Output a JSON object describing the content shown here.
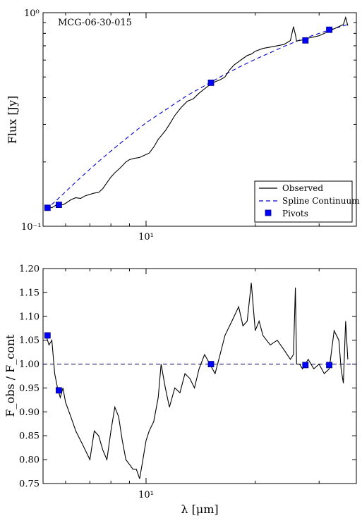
{
  "chart_data": [
    {
      "type": "line",
      "panel": "top",
      "annotation": "MCG-06-30-015",
      "xlabel": "",
      "ylabel": "Flux [Jy]",
      "xscale": "log",
      "yscale": "log",
      "xlim": [
        5.2,
        38
      ],
      "ylim": [
        0.1,
        1.0
      ],
      "x_tick_labels": [
        {
          "value": 10,
          "label": "10¹"
        }
      ],
      "y_tick_labels": [
        {
          "value": 0.1,
          "label": "10⁻¹"
        },
        {
          "value": 1.0,
          "label": "10⁰"
        }
      ],
      "legend": {
        "placement": "bottom-right",
        "entries": [
          {
            "label": "Observed",
            "style": "solid-line"
          },
          {
            "label": "Spline Continuum",
            "style": "dashed-line"
          },
          {
            "label": "Pivots",
            "style": "square-marker"
          }
        ]
      },
      "series": [
        {
          "role": "observed",
          "x": [
            5.3,
            5.5,
            5.7,
            5.9,
            6.0,
            6.2,
            6.4,
            6.6,
            6.8,
            7.0,
            7.2,
            7.4,
            7.6,
            7.8,
            8.0,
            8.2,
            8.5,
            8.8,
            9.0,
            9.3,
            9.6,
            9.9,
            10.2,
            10.5,
            10.8,
            11.1,
            11.3,
            11.6,
            12.0,
            12.5,
            13.0,
            13.5,
            14.0,
            14.5,
            15.0,
            15.5,
            16.0,
            16.5,
            17.0,
            17.5,
            18.0,
            18.5,
            19.0,
            19.5,
            20.0,
            21.0,
            22.0,
            23.0,
            24.0,
            25.0,
            25.5,
            25.8,
            26.0,
            26.3,
            27.0,
            28.0,
            29.0,
            30.0,
            31.0,
            32.0,
            33.0,
            34.0,
            35.0,
            35.5,
            36.0
          ],
          "y": [
            0.125,
            0.122,
            0.127,
            0.126,
            0.128,
            0.133,
            0.136,
            0.135,
            0.139,
            0.141,
            0.143,
            0.144,
            0.15,
            0.16,
            0.17,
            0.178,
            0.188,
            0.2,
            0.205,
            0.208,
            0.21,
            0.215,
            0.22,
            0.235,
            0.255,
            0.27,
            0.28,
            0.3,
            0.33,
            0.36,
            0.385,
            0.395,
            0.42,
            0.44,
            0.46,
            0.475,
            0.485,
            0.5,
            0.54,
            0.57,
            0.59,
            0.61,
            0.63,
            0.64,
            0.66,
            0.68,
            0.69,
            0.7,
            0.71,
            0.74,
            0.86,
            0.79,
            0.735,
            0.74,
            0.745,
            0.76,
            0.77,
            0.78,
            0.8,
            0.82,
            0.84,
            0.86,
            0.88,
            0.95,
            0.87
          ]
        },
        {
          "role": "spline",
          "x": [
            5.3,
            5.6,
            6.0,
            6.5,
            7.0,
            7.5,
            8.0,
            8.5,
            9.0,
            9.5,
            10.0,
            11.0,
            12.0,
            13.0,
            14.0,
            15.0,
            16.0,
            18.0,
            20.0,
            22.0,
            24.0,
            26.0,
            28.0,
            30.0,
            32.0,
            34.0,
            36.0
          ],
          "y": [
            0.12,
            0.13,
            0.145,
            0.165,
            0.185,
            0.205,
            0.225,
            0.245,
            0.265,
            0.285,
            0.305,
            0.34,
            0.375,
            0.41,
            0.44,
            0.47,
            0.5,
            0.555,
            0.605,
            0.65,
            0.695,
            0.735,
            0.77,
            0.8,
            0.83,
            0.855,
            0.88
          ]
        },
        {
          "role": "pivots",
          "x": [
            5.35,
            5.75,
            15.1,
            27.5,
            32.0
          ],
          "y": [
            0.122,
            0.126,
            0.47,
            0.742,
            0.832
          ]
        }
      ]
    },
    {
      "type": "line",
      "panel": "bottom",
      "xlabel": "λ [μm]",
      "ylabel": "F_obs / F_cont",
      "xscale": "log",
      "yscale": "linear",
      "xlim": [
        5.2,
        38
      ],
      "ylim": [
        0.75,
        1.2
      ],
      "x_tick_labels": [
        {
          "value": 10,
          "label": "10¹"
        }
      ],
      "y_ticks": [
        0.75,
        0.8,
        0.85,
        0.9,
        0.95,
        1.0,
        1.05,
        1.1,
        1.15,
        1.2
      ],
      "y_tick_labels": [
        "0.75",
        "0.80",
        "0.85",
        "0.90",
        "0.95",
        "1.00",
        "1.05",
        "1.10",
        "1.15",
        "1.20"
      ],
      "series": [
        {
          "role": "ratio",
          "x": [
            5.3,
            5.4,
            5.5,
            5.6,
            5.7,
            5.8,
            5.9,
            6.0,
            6.2,
            6.4,
            6.6,
            6.8,
            7.0,
            7.2,
            7.4,
            7.6,
            7.8,
            8.0,
            8.2,
            8.4,
            8.6,
            8.8,
            9.0,
            9.2,
            9.4,
            9.6,
            9.8,
            10.0,
            10.2,
            10.5,
            10.8,
            11.0,
            11.3,
            11.6,
            12.0,
            12.4,
            12.8,
            13.2,
            13.6,
            14.0,
            14.5,
            15.0,
            15.5,
            16.0,
            16.5,
            17.0,
            17.5,
            18.0,
            18.5,
            19.0,
            19.5,
            20.0,
            20.5,
            21.0,
            22.0,
            23.0,
            24.0,
            25.0,
            25.5,
            25.8,
            26.0,
            26.5,
            27.0,
            28.0,
            29.0,
            30.0,
            31.0,
            32.0,
            33.0,
            34.0,
            34.5,
            35.0,
            35.5,
            36.0
          ],
          "y": [
            1.06,
            1.04,
            1.05,
            0.98,
            0.95,
            0.93,
            0.95,
            0.92,
            0.89,
            0.86,
            0.84,
            0.82,
            0.8,
            0.86,
            0.85,
            0.82,
            0.8,
            0.86,
            0.91,
            0.89,
            0.84,
            0.8,
            0.79,
            0.78,
            0.78,
            0.76,
            0.8,
            0.84,
            0.86,
            0.88,
            0.93,
            1.0,
            0.95,
            0.91,
            0.95,
            0.94,
            0.98,
            0.97,
            0.95,
            0.99,
            1.02,
            1.0,
            0.98,
            1.02,
            1.06,
            1.08,
            1.1,
            1.12,
            1.08,
            1.09,
            1.17,
            1.07,
            1.09,
            1.06,
            1.04,
            1.05,
            1.03,
            1.01,
            1.02,
            1.16,
            1.0,
            1.0,
            0.99,
            1.01,
            0.99,
            1.0,
            0.98,
            0.99,
            1.07,
            1.05,
            0.99,
            0.96,
            1.09,
            1.01
          ]
        },
        {
          "role": "unity",
          "x": [
            5.2,
            38
          ],
          "y": [
            1.0,
            1.0
          ]
        },
        {
          "role": "pivots",
          "x": [
            5.35,
            5.75,
            15.1,
            27.5,
            32.0
          ],
          "y": [
            1.06,
            0.945,
            1.0,
            0.998,
            0.998
          ]
        }
      ]
    }
  ],
  "colors": {
    "observed": "#000000",
    "spline": "#0000cc",
    "pivot": "#0000ff",
    "pivot_edge": "#000080"
  }
}
